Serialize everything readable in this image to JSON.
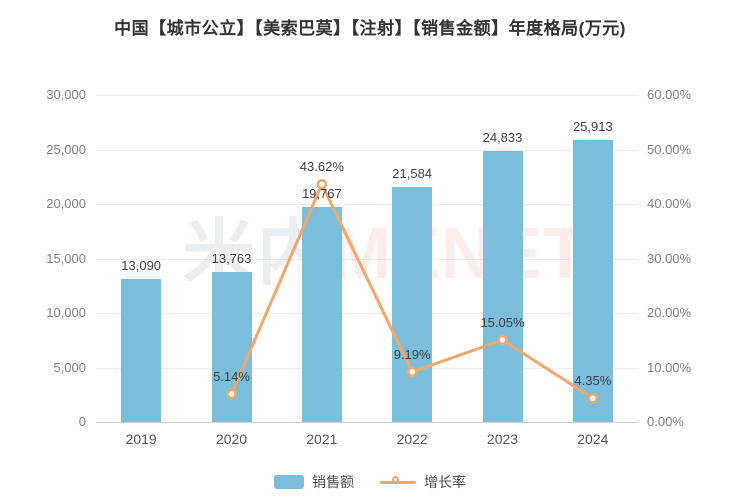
{
  "title": "中国【城市公立】【美索巴莫】【注射】【销售金额】年度格局(万元)",
  "watermark": {
    "part1": "米内",
    "part2": "MENET"
  },
  "colors": {
    "bar": "#7ABEDC",
    "line": "#F0A76B",
    "title_text": "#333333",
    "axis_text": "#7F7F7F",
    "label_text": "#404040",
    "gridline": "#ECECEC",
    "axis_line": "#CFCFCF",
    "background": "#FFFFFF"
  },
  "legend": {
    "items": [
      {
        "label": "销售额",
        "symbol": "bar-swatch"
      },
      {
        "label": "增长率",
        "symbol": "line-marker"
      }
    ]
  },
  "chart_data": {
    "type": "bar+line",
    "title": "中国【城市公立】【美索巴莫】【注射】【销售金额】年度格局(万元)",
    "categories": [
      "2019",
      "2020",
      "2021",
      "2022",
      "2023",
      "2024"
    ],
    "series": [
      {
        "name": "销售额",
        "type": "bar",
        "axis": "left",
        "values": [
          13090,
          13763,
          19767,
          21584,
          24833,
          25913
        ],
        "labels": [
          "13,090",
          "13,763",
          "19,767",
          "21,584",
          "24,833",
          "25,913"
        ]
      },
      {
        "name": "增长率",
        "type": "line",
        "axis": "right",
        "values": [
          null,
          5.14,
          43.62,
          9.19,
          15.05,
          4.35
        ],
        "labels": [
          null,
          "5.14%",
          "43.62%",
          "9.19%",
          "15.05%",
          "4.35%"
        ]
      }
    ],
    "left_axis": {
      "min": 0,
      "max": 30000,
      "step": 5000,
      "ticks": [
        "0",
        "5,000",
        "10,000",
        "15,000",
        "20,000",
        "25,000",
        "30,000"
      ]
    },
    "right_axis": {
      "min": 0,
      "max": 60,
      "step": 10,
      "ticks": [
        "0.00%",
        "10.00%",
        "20.00%",
        "30.00%",
        "40.00%",
        "50.00%",
        "60.00%"
      ]
    },
    "grid": "horizontal-only",
    "legend_position": "bottom-center"
  }
}
